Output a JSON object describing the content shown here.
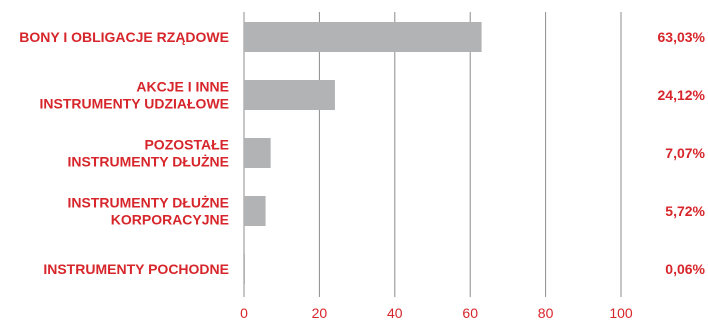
{
  "chart_data": {
    "type": "bar",
    "orientation": "horizontal",
    "categories": [
      [
        "BONY I OBLIGACJE RZĄDOWE"
      ],
      [
        "AKCJE I INNE",
        "INSTRUMENTY UDZIAŁOWE"
      ],
      [
        "POZOSTAŁE",
        "INSTRUMENTY DŁUŻNE"
      ],
      [
        "INSTRUMENTY DŁUŻNE",
        "KORPORACYJNE"
      ],
      [
        "INSTRUMENTY POCHODNE"
      ]
    ],
    "values": [
      63.03,
      24.12,
      7.07,
      5.72,
      0.06
    ],
    "value_labels": [
      "63,03%",
      "24,12%",
      "7,07%",
      "5,72%",
      "0,06%"
    ],
    "xlim": [
      0,
      100
    ],
    "xticks": [
      0,
      20,
      40,
      60,
      80,
      100
    ],
    "xtick_labels": [
      "0",
      "20",
      "40",
      "60",
      "80",
      "100"
    ],
    "grid": "vertical",
    "legend": "none",
    "colors": {
      "bar": "#b2b3b5",
      "label": "#d7262b",
      "tick": "#d7262b",
      "grid": "#8c8c8c",
      "axis": "#8c8c8c"
    }
  }
}
